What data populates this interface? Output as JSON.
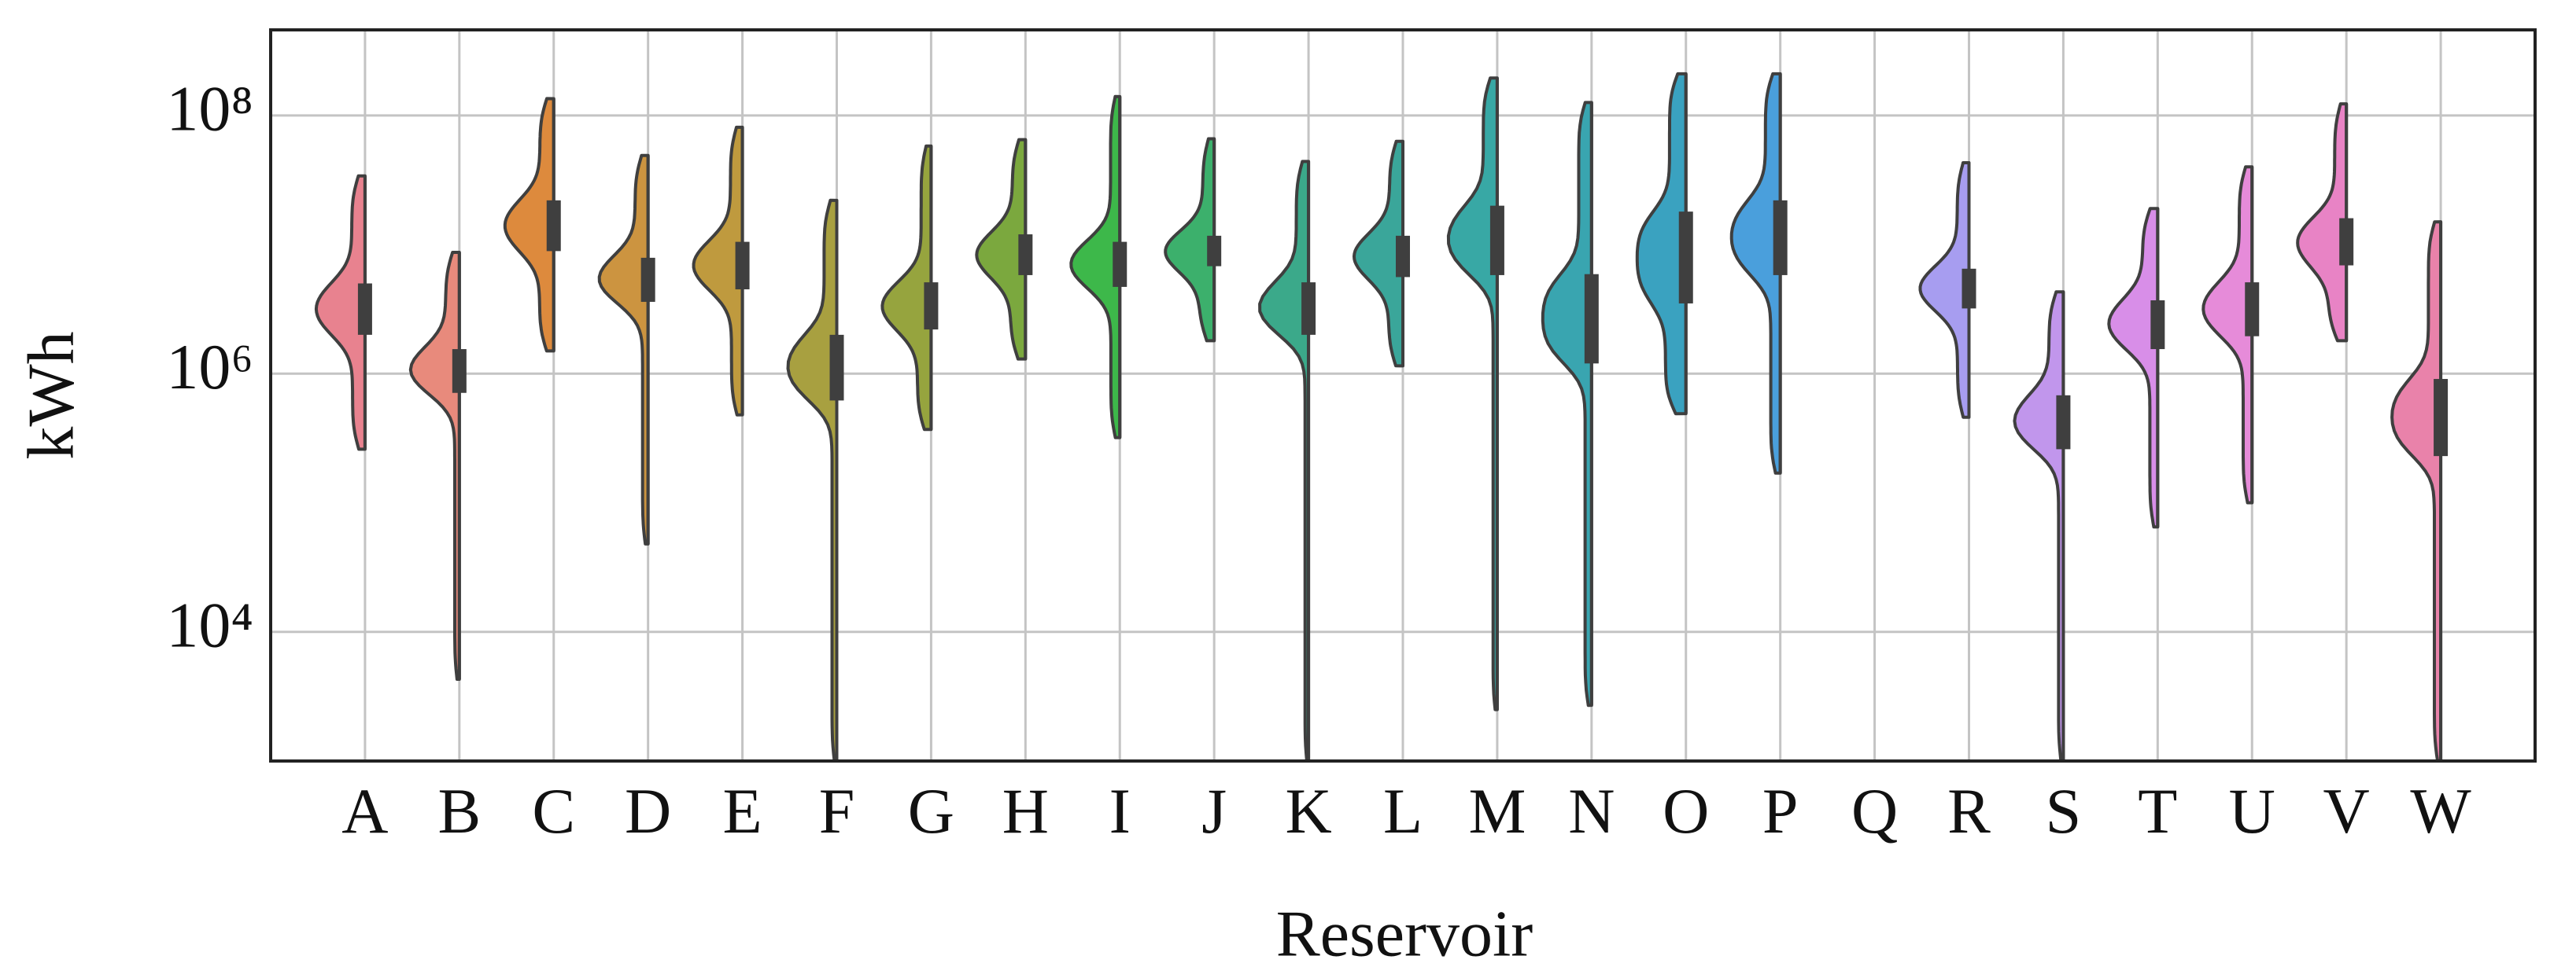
{
  "chart_data": {
    "type": "violin",
    "x_label": "Reservoir",
    "y_label": "kWh",
    "categories": [
      "A",
      "B",
      "C",
      "D",
      "E",
      "F",
      "G",
      "H",
      "I",
      "J",
      "K",
      "L",
      "M",
      "N",
      "O",
      "P",
      "Q",
      "R",
      "S",
      "T",
      "U",
      "V",
      "W"
    ],
    "colors": [
      "#e8828f",
      "#e88a7c",
      "#dd8a3d",
      "#cc9440",
      "#bf9a3e",
      "#a8a040",
      "#96a43e",
      "#7ba83e",
      "#3db84a",
      "#3cb06c",
      "#3ba98a",
      "#3aa69a",
      "#38a8a5",
      "#39a5b0",
      "#3aa2c0",
      "#4a9fdc",
      "#8199e8",
      "#a79df0",
      "#c196ec",
      "#d88ee8",
      "#e68bd9",
      "#e883c5",
      "#e982aa"
    ],
    "min": [
      260000,
      4300,
      1500000,
      48000,
      480000,
      1000,
      370000,
      1300000,
      320000,
      1800000,
      1000,
      1150000,
      2500,
      2700,
      490000,
      170000,
      null,
      460000,
      1000,
      65000,
      100000,
      1800000,
      1000
    ],
    "q1": [
      2000000,
      710000,
      8900000,
      3600000,
      4500000,
      620000,
      2200000,
      5800000,
      4700000,
      6800000,
      2000000,
      5600000,
      5800000,
      1200000,
      3500000,
      5800000,
      null,
      3200000,
      260000,
      1550000,
      1950000,
      6900000,
      230000
    ],
    "q3": [
      5000000,
      1550000,
      22000000,
      7900000,
      10500000,
      2000000,
      5100000,
      12000000,
      10500000,
      11700000,
      5100000,
      11700000,
      20000000,
      5900000,
      18000000,
      22000000,
      null,
      6500000,
      680000,
      3700000,
      5100000,
      16000000,
      910000
    ],
    "max": [
      34000000,
      8700000,
      135000000,
      49000000,
      81000000,
      22000000,
      58000000,
      65000000,
      140000000,
      66000000,
      44000000,
      63000000,
      195000000,
      126000000,
      210000000,
      210000000,
      null,
      43000000,
      4300000,
      19000000,
      40000000,
      123000000,
      15000000
    ],
    "ylim": [
      1000,
      460000000
    ],
    "log_y": true,
    "grid": true,
    "yticks": [
      {
        "value": 10000,
        "label": "10⁴"
      },
      {
        "value": 1000000,
        "label": "10⁶"
      },
      {
        "value": 100000000,
        "label": "10⁸"
      }
    ]
  }
}
